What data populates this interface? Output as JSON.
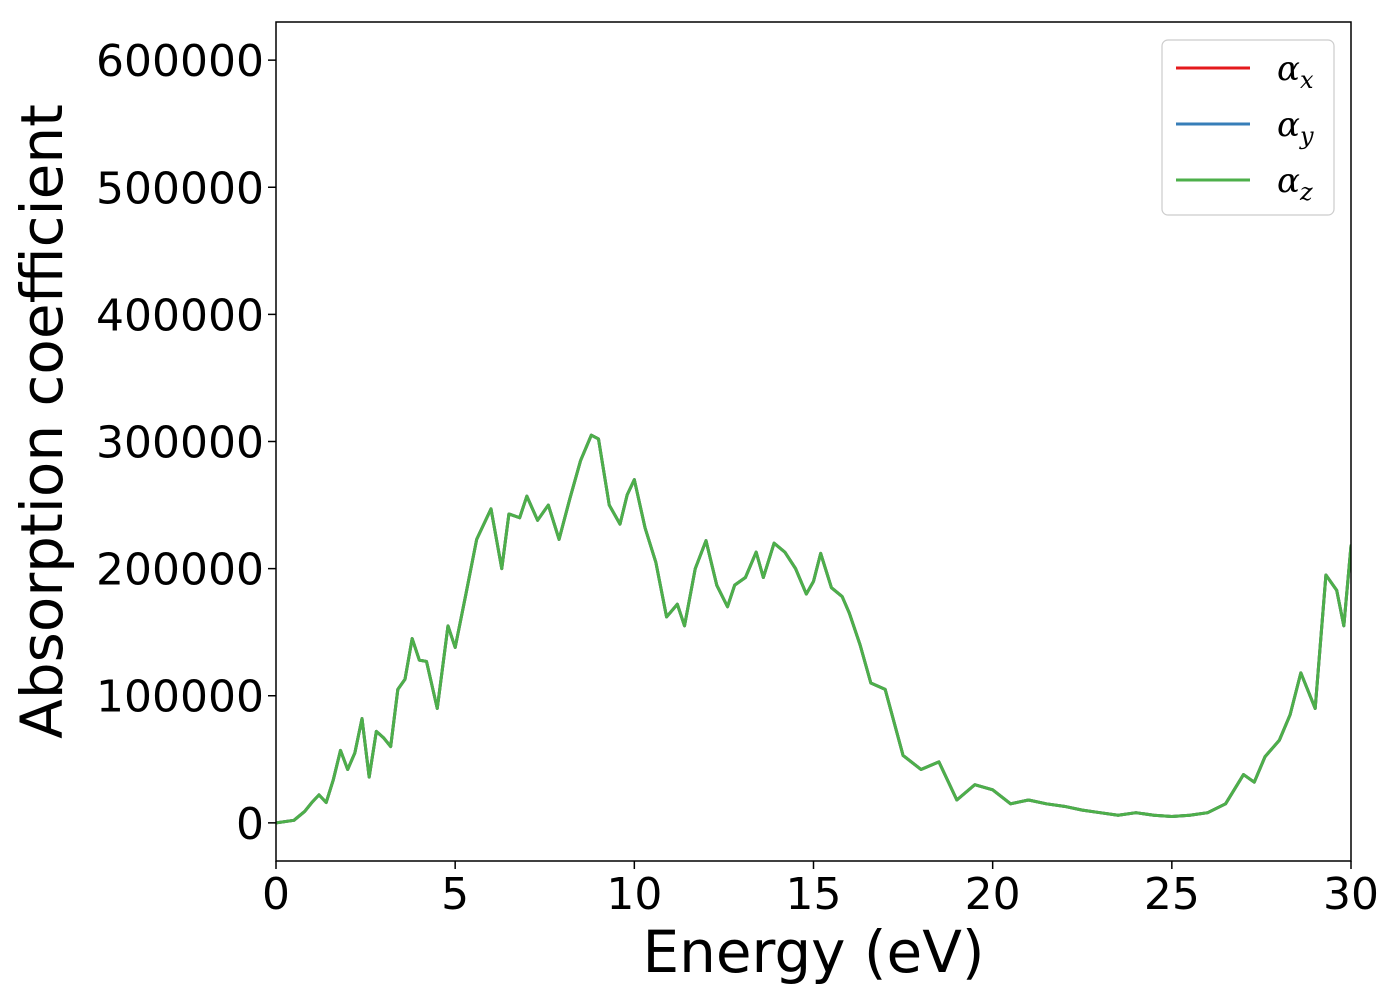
{
  "chart_data": {
    "type": "line",
    "xlabel": "Energy (eV)",
    "ylabel": "Absorption coefficient",
    "xlim": [
      0,
      30
    ],
    "ylim": [
      -30000,
      630000
    ],
    "xticks": [
      0,
      5,
      10,
      15,
      20,
      25,
      30
    ],
    "yticks": [
      0,
      100000,
      200000,
      300000,
      400000,
      500000,
      600000
    ],
    "grid": false,
    "legend_position": "top-right",
    "series": [
      {
        "name": "α_x",
        "label_main": "α",
        "label_sub": "x",
        "color": "#e41a1c"
      },
      {
        "name": "α_y",
        "label_main": "α",
        "label_sub": "y",
        "color": "#377eb8"
      },
      {
        "name": "α_z",
        "label_main": "α",
        "label_sub": "z",
        "color": "#4daf4a"
      }
    ],
    "x": [
      0,
      0.5,
      0.8,
      1.0,
      1.2,
      1.4,
      1.6,
      1.8,
      2.0,
      2.2,
      2.4,
      2.6,
      2.8,
      3.0,
      3.2,
      3.4,
      3.6,
      3.8,
      4.0,
      4.2,
      4.5,
      4.8,
      5.0,
      5.3,
      5.6,
      6.0,
      6.3,
      6.5,
      6.8,
      7.0,
      7.3,
      7.6,
      7.9,
      8.2,
      8.5,
      8.8,
      9.0,
      9.3,
      9.6,
      9.8,
      10.0,
      10.3,
      10.6,
      10.9,
      11.2,
      11.4,
      11.7,
      12.0,
      12.3,
      12.6,
      12.8,
      13.1,
      13.4,
      13.6,
      13.9,
      14.2,
      14.5,
      14.8,
      15.0,
      15.2,
      15.5,
      15.8,
      16.0,
      16.3,
      16.6,
      17.0,
      17.5,
      18.0,
      18.5,
      19.0,
      19.5,
      20.0,
      20.5,
      21.0,
      21.5,
      22.0,
      22.5,
      23.0,
      23.5,
      24.0,
      24.5,
      25.0,
      25.5,
      26.0,
      26.5,
      27.0,
      27.3,
      27.6,
      28.0,
      28.3,
      28.6,
      29.0,
      29.3,
      29.6,
      29.8,
      30.0
    ],
    "y": [
      0,
      2000,
      9000,
      16000,
      22000,
      16000,
      34000,
      57000,
      42000,
      55000,
      82000,
      36000,
      72000,
      67000,
      60000,
      105000,
      113000,
      145000,
      128000,
      127000,
      90000,
      155000,
      138000,
      180000,
      223000,
      247000,
      200000,
      243000,
      240000,
      257000,
      238000,
      250000,
      223000,
      255000,
      285000,
      305000,
      302000,
      250000,
      235000,
      258000,
      270000,
      232000,
      205000,
      162000,
      172000,
      155000,
      200000,
      222000,
      187000,
      170000,
      187000,
      193000,
      213000,
      193000,
      220000,
      213000,
      200000,
      180000,
      190000,
      212000,
      185000,
      178000,
      165000,
      140000,
      110000,
      105000,
      53000,
      42000,
      48000,
      18000,
      30000,
      26000,
      15000,
      18000,
      15000,
      13000,
      10000,
      8000,
      6000,
      8000,
      6000,
      5000,
      6000,
      8000,
      15000,
      38000,
      32000,
      52000,
      65000,
      85000,
      118000,
      90000,
      195000,
      183000,
      155000,
      218000
    ]
  }
}
